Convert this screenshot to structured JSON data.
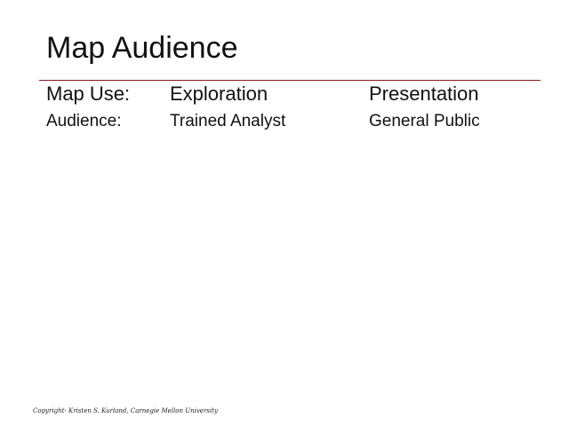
{
  "slide": {
    "title": "Map Audience",
    "rows": [
      {
        "label": "Map Use:",
        "col1": "Exploration",
        "col2": "Presentation"
      },
      {
        "label": "Audience:",
        "col1": "Trained Analyst",
        "col2": "General Public"
      }
    ],
    "footer": "Copyright- Kristen S. Kurland, Carnegie Mellon University"
  },
  "colors": {
    "rule": "#8a1c1c",
    "text": "#111111",
    "background": "#ffffff"
  }
}
